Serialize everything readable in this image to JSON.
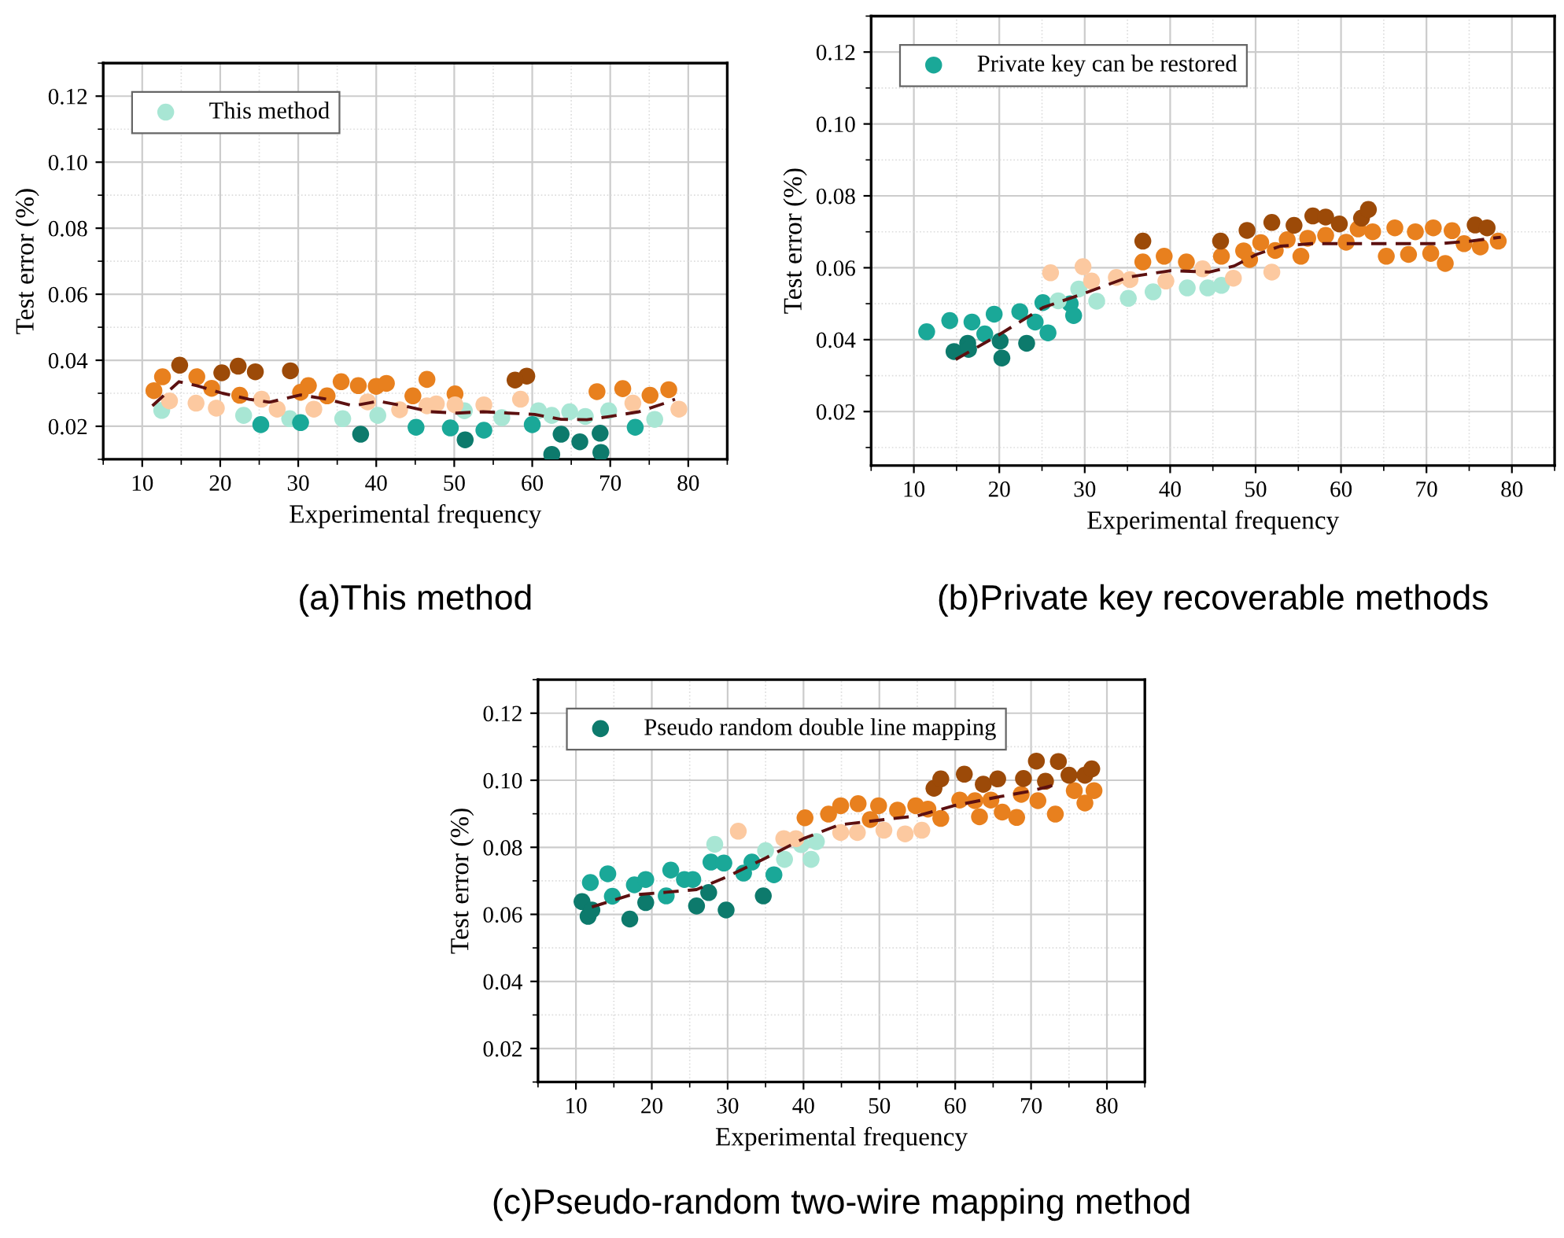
{
  "chart_data": [
    {
      "type": "scatter",
      "title": "(a)This method",
      "xlabel": "Experimental frequency",
      "ylabel": "Test error (%)",
      "xlim": [
        5,
        85
      ],
      "xticks": [
        10,
        20,
        30,
        40,
        50,
        60,
        70,
        80
      ],
      "ylim": [
        0.01,
        0.13
      ],
      "yticks": [
        {
          "value": 0.02,
          "label": "0.02"
        },
        {
          "value": 0.04,
          "label": "0.04"
        },
        {
          "value": 0.06,
          "label": "0.06"
        },
        {
          "value": 0.08,
          "label": "0.08"
        },
        {
          "value": 0.1,
          "label": "0.10"
        },
        {
          "value": 0.12,
          "label": "0.12"
        }
      ],
      "grid": true,
      "legend": "top left",
      "marker": "circle",
      "series": [
        {
          "name": "This method",
          "color": "#a8e6d4",
          "x": [
            12.5,
            23,
            28.9,
            35.7,
            40.2,
            51.3,
            56.1,
            60.8,
            62.5,
            64.8,
            66.8,
            69.8,
            75.7,
            14.8,
            22.3,
            24.5,
            20.2,
            29,
            59.3,
            57.8,
            11.5,
            12.6,
            17,
            18.9,
            22.5,
            31.3,
            30.3,
            33.7,
            35.5,
            37.7,
            40,
            41.3,
            44.7,
            46.5,
            50.1,
            68.3,
            71.6,
            75.1,
            77.5,
            13.5,
            16.9,
            19.5,
            25.3,
            27.3,
            32,
            38.9,
            43,
            46.5,
            47.7,
            50.1,
            53.8,
            58.5,
            72.9,
            78.8,
            25.2,
            30.3,
            45.1,
            49.5,
            53.8,
            60,
            73.2,
            38,
            51.4,
            63.7,
            66.1,
            68.7,
            62.5,
            68.8
          ],
          "values": [
            0.0248,
            0.0233,
            0.0223,
            0.0223,
            0.0233,
            0.0247,
            0.0226,
            0.0247,
            0.0233,
            0.0244,
            0.023,
            0.0247,
            0.0221,
            0.0385,
            0.0382,
            0.0365,
            0.0362,
            0.0368,
            0.0352,
            0.034,
            0.0308,
            0.035,
            0.035,
            0.0315,
            0.0294,
            0.0323,
            0.0303,
            0.0292,
            0.0335,
            0.0323,
            0.0321,
            0.033,
            0.0292,
            0.0342,
            0.0298,
            0.0305,
            0.0314,
            0.0294,
            0.0311,
            0.0277,
            0.027,
            0.0255,
            0.0282,
            0.0252,
            0.0252,
            0.0274,
            0.025,
            0.0262,
            0.0268,
            0.0265,
            0.0265,
            0.0282,
            0.027,
            0.0252,
            0.0205,
            0.0211,
            0.0197,
            0.0195,
            0.0188,
            0.0205,
            0.0197,
            0.0176,
            0.0159,
            0.0176,
            0.0153,
            0.0179,
            0.0115,
            0.0121
          ],
          "colors": [
            "#a8e6d4",
            "#a8e6d4",
            "#a8e6d4",
            "#a8e6d4",
            "#a8e6d4",
            "#a8e6d4",
            "#a8e6d4",
            "#a8e6d4",
            "#a8e6d4",
            "#a8e6d4",
            "#a8e6d4",
            "#a8e6d4",
            "#a8e6d4",
            "#9c4a08",
            "#9c4a08",
            "#9c4a08",
            "#9c4a08",
            "#9c4a08",
            "#9c4a08",
            "#9c4a08",
            "#e8801e",
            "#e8801e",
            "#e8801e",
            "#e8801e",
            "#e8801e",
            "#e8801e",
            "#e8801e",
            "#e8801e",
            "#e8801e",
            "#e8801e",
            "#e8801e",
            "#e8801e",
            "#e8801e",
            "#e8801e",
            "#e8801e",
            "#e8801e",
            "#e8801e",
            "#e8801e",
            "#e8801e",
            "#fcc9a0",
            "#fcc9a0",
            "#fcc9a0",
            "#fcc9a0",
            "#fcc9a0",
            "#fcc9a0",
            "#fcc9a0",
            "#fcc9a0",
            "#fcc9a0",
            "#fcc9a0",
            "#fcc9a0",
            "#fcc9a0",
            "#fcc9a0",
            "#fcc9a0",
            "#fcc9a0",
            "#1aa898",
            "#1aa898",
            "#1aa898",
            "#1aa898",
            "#1aa898",
            "#1aa898",
            "#1aa898",
            "#0d7a6c",
            "#0d7a6c",
            "#0d7a6c",
            "#0d7a6c",
            "#0d7a6c",
            "#0d7a6c",
            "#0d7a6c"
          ]
        },
        {
          "type": "line",
          "color": "#5c1010",
          "line_style": "dashed",
          "marker": "none",
          "x": [
            11.3,
            14.7,
            17,
            20.3,
            23.7,
            26.3,
            30.3,
            33.7,
            37,
            40.3,
            43.7,
            47,
            50.3,
            53.7,
            57,
            60.3,
            63.7,
            67,
            69.7,
            73.7,
            77,
            78.3
          ],
          "values": [
            0.0262,
            0.0335,
            0.0323,
            0.03,
            0.0282,
            0.0273,
            0.0295,
            0.0282,
            0.0262,
            0.0276,
            0.0261,
            0.0244,
            0.024,
            0.0244,
            0.024,
            0.0236,
            0.0221,
            0.022,
            0.0229,
            0.0244,
            0.027,
            0.0282
          ]
        }
      ]
    },
    {
      "type": "scatter",
      "title": "(b)Private key recoverable methods",
      "xlabel": "Experimental frequency",
      "ylabel": "Test error (%)",
      "xlim": [
        5,
        85
      ],
      "xticks": [
        10,
        20,
        30,
        40,
        50,
        60,
        70,
        80
      ],
      "ylim": [
        0.005,
        0.13
      ],
      "yticks": [
        {
          "value": 0.02,
          "label": "0.02"
        },
        {
          "value": 0.04,
          "label": "0.04"
        },
        {
          "value": 0.06,
          "label": "0.06"
        },
        {
          "value": 0.08,
          "label": "0.08"
        },
        {
          "value": 0.1,
          "label": "0.10"
        },
        {
          "value": 0.12,
          "label": "0.12"
        }
      ],
      "grid": true,
      "legend": "top left",
      "marker": "circle",
      "series": [
        {
          "name": "Private key can be restored",
          "color": "#1aa898",
          "x": [
            11.5,
            14.2,
            16.8,
            19.4,
            22.4,
            25.1,
            28.3,
            28.7,
            24.2,
            25.7,
            18.3,
            14.7,
            16.3,
            16.4,
            20.1,
            20.3,
            23.2,
            26.9,
            29.3,
            31.4,
            35.1,
            38,
            42,
            44.4,
            46,
            26,
            29.8,
            30.8,
            33.7,
            35.3,
            39.5,
            43.8,
            47.4,
            51.9,
            36.8,
            39.3,
            41.9,
            46,
            48.6,
            49.3,
            50.6,
            52.3,
            53.7,
            55.3,
            56.1,
            58.2,
            60.6,
            62,
            63.7,
            65.3,
            66.3,
            67.9,
            68.7,
            70.5,
            70.8,
            72.2,
            73,
            74.4,
            76.3,
            78.4,
            36.8,
            45.9,
            49,
            51.9,
            54.5,
            56.7,
            58.2,
            59.8,
            62.4,
            63.2,
            75.7,
            77.1
          ],
          "values": [
            0.0422,
            0.0453,
            0.0449,
            0.0471,
            0.0478,
            0.0503,
            0.05,
            0.0467,
            0.0449,
            0.0419,
            0.0416,
            0.0367,
            0.039,
            0.0373,
            0.0396,
            0.0349,
            0.039,
            0.0508,
            0.0541,
            0.0507,
            0.0515,
            0.0533,
            0.0544,
            0.0544,
            0.0551,
            0.0586,
            0.0603,
            0.0563,
            0.0573,
            0.0567,
            0.0563,
            0.0597,
            0.0571,
            0.0588,
            0.0616,
            0.0632,
            0.0616,
            0.0632,
            0.0647,
            0.0623,
            0.067,
            0.0648,
            0.0678,
            0.0632,
            0.0682,
            0.069,
            0.0671,
            0.0708,
            0.07,
            0.0632,
            0.0711,
            0.0637,
            0.07,
            0.064,
            0.0711,
            0.0612,
            0.0703,
            0.0667,
            0.0658,
            0.0674,
            0.0674,
            0.0674,
            0.0704,
            0.0726,
            0.0718,
            0.0744,
            0.0741,
            0.0722,
            0.0738,
            0.0762,
            0.0719,
            0.0711
          ],
          "colors": [
            "#1aa898",
            "#1aa898",
            "#1aa898",
            "#1aa898",
            "#1aa898",
            "#1aa898",
            "#1aa898",
            "#1aa898",
            "#1aa898",
            "#1aa898",
            "#1aa898",
            "#0d7a6c",
            "#0d7a6c",
            "#0d7a6c",
            "#0d7a6c",
            "#0d7a6c",
            "#0d7a6c",
            "#a8e6d4",
            "#a8e6d4",
            "#a8e6d4",
            "#a8e6d4",
            "#a8e6d4",
            "#a8e6d4",
            "#a8e6d4",
            "#a8e6d4",
            "#fcc9a0",
            "#fcc9a0",
            "#fcc9a0",
            "#fcc9a0",
            "#fcc9a0",
            "#fcc9a0",
            "#fcc9a0",
            "#fcc9a0",
            "#fcc9a0",
            "#e8801e",
            "#e8801e",
            "#e8801e",
            "#e8801e",
            "#e8801e",
            "#e8801e",
            "#e8801e",
            "#e8801e",
            "#e8801e",
            "#e8801e",
            "#e8801e",
            "#e8801e",
            "#e8801e",
            "#e8801e",
            "#e8801e",
            "#e8801e",
            "#e8801e",
            "#e8801e",
            "#e8801e",
            "#e8801e",
            "#e8801e",
            "#e8801e",
            "#e8801e",
            "#e8801e",
            "#e8801e",
            "#e8801e",
            "#9c4a08",
            "#9c4a08",
            "#9c4a08",
            "#9c4a08",
            "#9c4a08",
            "#9c4a08",
            "#9c4a08",
            "#9c4a08",
            "#9c4a08",
            "#9c4a08",
            "#9c4a08",
            "#9c4a08"
          ]
        },
        {
          "type": "line",
          "color": "#5c1010",
          "line_style": "dashed",
          "marker": "none",
          "x": [
            14.9,
            20,
            25.1,
            30.1,
            35.1,
            40.1,
            44.6,
            47.5,
            50.1,
            52.9,
            56.5,
            60.1,
            65.5,
            71.5,
            75.1,
            78.7
          ],
          "values": [
            0.0345,
            0.0414,
            0.0489,
            0.053,
            0.0574,
            0.0592,
            0.0588,
            0.0605,
            0.0637,
            0.066,
            0.0667,
            0.0667,
            0.0667,
            0.0667,
            0.0674,
            0.0685
          ]
        }
      ]
    },
    {
      "type": "scatter",
      "title": "(c)Pseudo-random two-wire mapping method",
      "xlabel": "Experimental frequency",
      "ylabel": "Test error (%)",
      "xlim": [
        5,
        85
      ],
      "xticks": [
        10,
        20,
        30,
        40,
        50,
        60,
        70,
        80
      ],
      "ylim": [
        0.01,
        0.13
      ],
      "yticks": [
        {
          "value": 0.02,
          "label": "0.02"
        },
        {
          "value": 0.04,
          "label": "0.04"
        },
        {
          "value": 0.06,
          "label": "0.06"
        },
        {
          "value": 0.08,
          "label": "0.08"
        },
        {
          "value": 0.1,
          "label": "0.10"
        },
        {
          "value": 0.12,
          "label": "0.12"
        }
      ],
      "grid": true,
      "legend": "top left",
      "marker": "circle",
      "series": [
        {
          "name": "Pseudo random double line mapping",
          "color": "#0d7a6c",
          "x": [
            10.8,
            11.6,
            12.1,
            17.1,
            19.2,
            25.9,
            27.5,
            29.8,
            34.7,
            11.9,
            14.2,
            14.8,
            17.7,
            19.2,
            21.9,
            22.5,
            24.3,
            25.4,
            27.8,
            29.5,
            32.1,
            33.2,
            36.1,
            28.3,
            35,
            37.5,
            39.7,
            41,
            41.7,
            31.4,
            37.4,
            39,
            44.9,
            47.1,
            50.6,
            53.4,
            55.6,
            40.2,
            43.3,
            44.9,
            47.2,
            48.8,
            49.9,
            52.4,
            54.8,
            56.4,
            58.1,
            60.6,
            62.6,
            63.2,
            64.7,
            66.2,
            68.1,
            68.7,
            70.9,
            73.2,
            75.7,
            77.1,
            78.3,
            57.2,
            58.1,
            61.2,
            63.7,
            65.6,
            69,
            70.7,
            71.9,
            73.6,
            75,
            77.1,
            78
          ],
          "values": [
            0.0638,
            0.0594,
            0.0613,
            0.0586,
            0.0635,
            0.0625,
            0.0665,
            0.0613,
            0.0655,
            0.0695,
            0.0721,
            0.0654,
            0.0688,
            0.0704,
            0.0655,
            0.0732,
            0.0704,
            0.0704,
            0.0756,
            0.0753,
            0.0723,
            0.0756,
            0.0718,
            0.0809,
            0.079,
            0.0764,
            0.0808,
            0.0764,
            0.0817,
            0.0848,
            0.0826,
            0.0826,
            0.0844,
            0.0844,
            0.0851,
            0.084,
            0.0851,
            0.0888,
            0.0899,
            0.0924,
            0.093,
            0.0883,
            0.0924,
            0.0911,
            0.0924,
            0.0914,
            0.0886,
            0.0941,
            0.0939,
            0.0891,
            0.0941,
            0.0905,
            0.0889,
            0.0958,
            0.0939,
            0.0899,
            0.0969,
            0.0932,
            0.0969,
            0.0976,
            0.1004,
            0.1018,
            0.0988,
            0.1004,
            0.1005,
            0.1057,
            0.0997,
            0.1056,
            0.1015,
            0.1015,
            0.1034
          ],
          "colors": [
            "#0d7a6c",
            "#0d7a6c",
            "#0d7a6c",
            "#0d7a6c",
            "#0d7a6c",
            "#0d7a6c",
            "#0d7a6c",
            "#0d7a6c",
            "#0d7a6c",
            "#1aa898",
            "#1aa898",
            "#1aa898",
            "#1aa898",
            "#1aa898",
            "#1aa898",
            "#1aa898",
            "#1aa898",
            "#1aa898",
            "#1aa898",
            "#1aa898",
            "#1aa898",
            "#1aa898",
            "#1aa898",
            "#a8e6d4",
            "#a8e6d4",
            "#a8e6d4",
            "#a8e6d4",
            "#a8e6d4",
            "#a8e6d4",
            "#fcc9a0",
            "#fcc9a0",
            "#fcc9a0",
            "#fcc9a0",
            "#fcc9a0",
            "#fcc9a0",
            "#fcc9a0",
            "#fcc9a0",
            "#e8801e",
            "#e8801e",
            "#e8801e",
            "#e8801e",
            "#e8801e",
            "#e8801e",
            "#e8801e",
            "#e8801e",
            "#e8801e",
            "#e8801e",
            "#e8801e",
            "#e8801e",
            "#e8801e",
            "#e8801e",
            "#e8801e",
            "#e8801e",
            "#e8801e",
            "#e8801e",
            "#e8801e",
            "#e8801e",
            "#e8801e",
            "#e8801e",
            "#9c4a08",
            "#9c4a08",
            "#9c4a08",
            "#9c4a08",
            "#9c4a08",
            "#9c4a08",
            "#9c4a08",
            "#9c4a08",
            "#9c4a08",
            "#9c4a08",
            "#9c4a08",
            "#9c4a08"
          ]
        },
        {
          "type": "line",
          "color": "#5c1010",
          "line_style": "dashed",
          "marker": "none",
          "x": [
            12.1,
            17.1,
            21.9,
            25.9,
            30,
            35,
            40,
            44.7,
            50,
            55,
            60,
            65.4,
            70,
            73
          ],
          "values": [
            0.0622,
            0.0657,
            0.0666,
            0.0674,
            0.0713,
            0.0768,
            0.0826,
            0.0867,
            0.0881,
            0.0894,
            0.0925,
            0.0949,
            0.0968,
            0.0985
          ]
        }
      ]
    }
  ]
}
